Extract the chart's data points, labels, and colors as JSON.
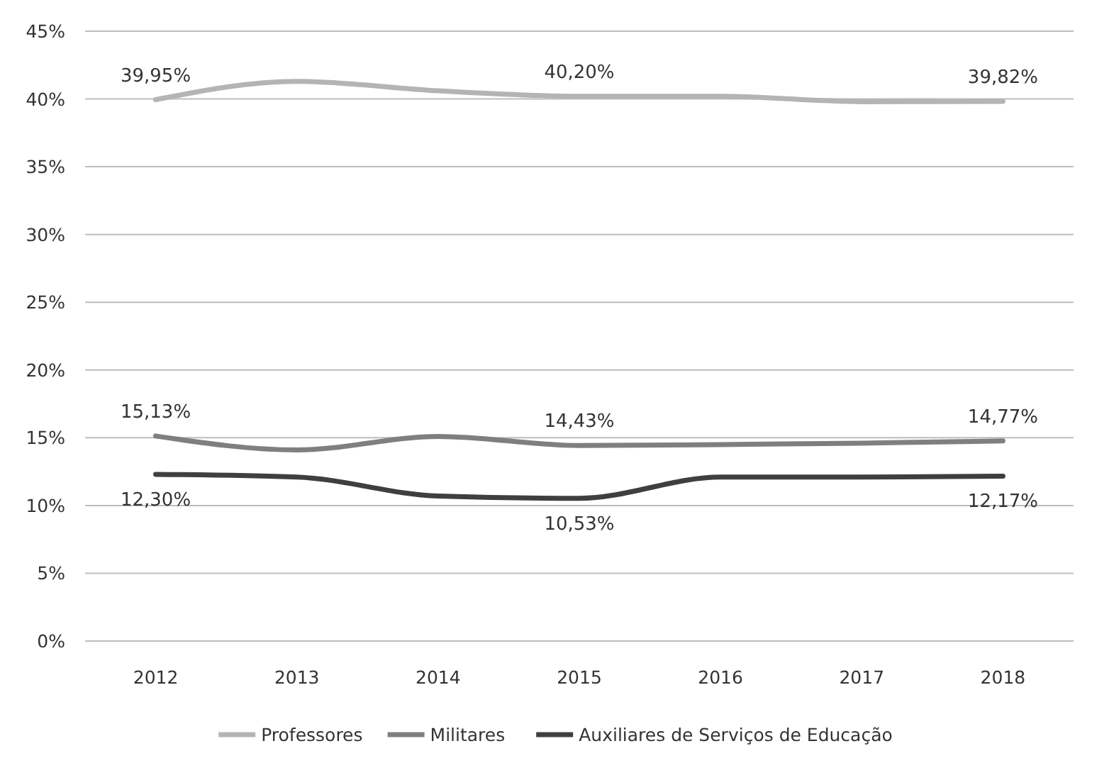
{
  "chart_data": {
    "type": "line",
    "categories": [
      "2012",
      "2013",
      "2014",
      "2015",
      "2016",
      "2017",
      "2018"
    ],
    "series": [
      {
        "name": "Professores",
        "color": "#b4b4b4",
        "values": [
          39.95,
          41.3,
          40.6,
          40.2,
          40.2,
          39.8,
          39.82
        ],
        "value_labels": [
          "39,95%",
          null,
          null,
          "40,20%",
          null,
          null,
          "39,82%"
        ]
      },
      {
        "name": "Militares",
        "color": "#7f7f7f",
        "values": [
          15.13,
          14.1,
          15.1,
          14.43,
          14.5,
          14.6,
          14.77
        ],
        "value_labels": [
          "15,13%",
          null,
          null,
          "14,43%",
          null,
          null,
          "14,77%"
        ]
      },
      {
        "name": "Auxiliares de Serviços de Educação",
        "color": "#3f3f3f",
        "values": [
          12.3,
          12.1,
          10.7,
          10.53,
          12.1,
          12.1,
          12.17
        ],
        "value_labels": [
          "12,30%",
          null,
          null,
          "10,53%",
          null,
          null,
          "12,17%"
        ]
      }
    ],
    "ylim": [
      0,
      45
    ],
    "yticks": [
      {
        "value": 0,
        "label": "0%"
      },
      {
        "value": 5,
        "label": "5%"
      },
      {
        "value": 10,
        "label": "10%"
      },
      {
        "value": 15,
        "label": "15%"
      },
      {
        "value": 20,
        "label": "20%"
      },
      {
        "value": 25,
        "label": "25%"
      },
      {
        "value": 30,
        "label": "30%"
      },
      {
        "value": 35,
        "label": "35%"
      },
      {
        "value": 40,
        "label": "40%"
      },
      {
        "value": 45,
        "label": "45%"
      }
    ],
    "grid": "y",
    "legend": "bottom",
    "marker": "none",
    "line_style": "solid"
  }
}
